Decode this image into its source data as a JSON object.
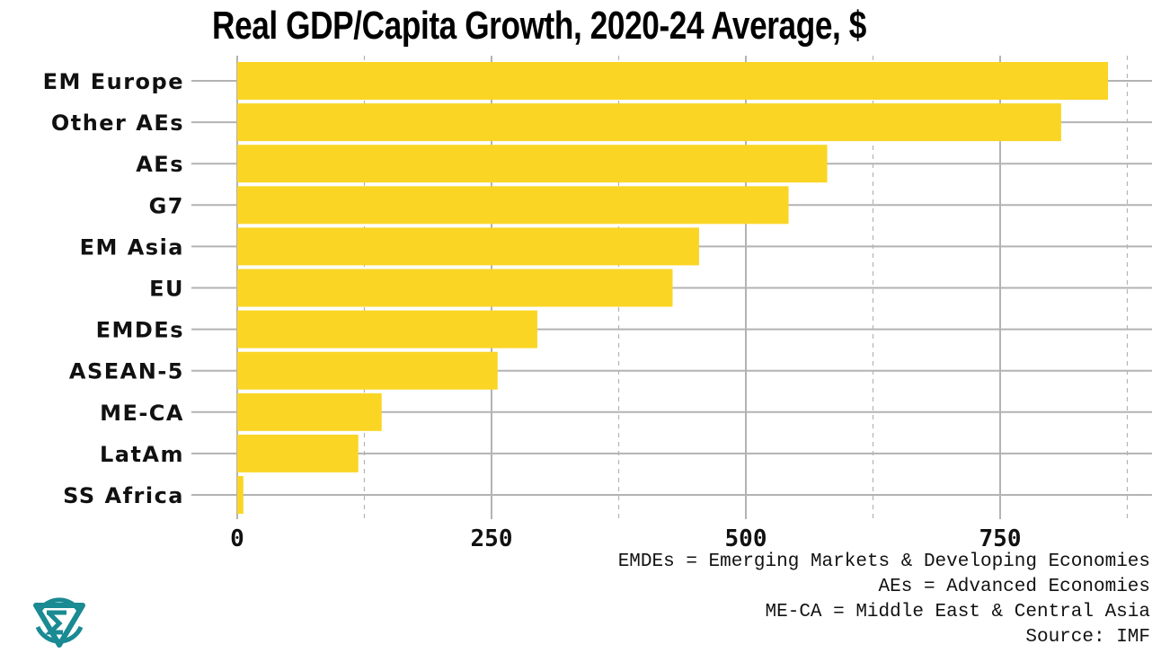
{
  "chart_data": {
    "type": "bar",
    "orientation": "horizontal",
    "title": "Real GDP/Capita Growth, 2020-24 Average, $",
    "categories": [
      "EM Europe",
      "Other AEs",
      "AEs",
      "G7",
      "EM Asia",
      "EU",
      "EMDEs",
      "ASEAN-5",
      "ME-CA",
      "LatAm",
      "SS Africa"
    ],
    "values": [
      856,
      810,
      580,
      542,
      454,
      428,
      295,
      256,
      142,
      119,
      6
    ],
    "xlabel": "",
    "ylabel": "",
    "xlim": [
      0,
      900
    ],
    "xticks": [
      0,
      250,
      500,
      750
    ],
    "xtick_labels": [
      "0",
      "250",
      "500",
      "750"
    ],
    "grid": true,
    "bar_color": "#FAD524",
    "grid_color": "#B3B3B3"
  },
  "notes": [
    "EMDEs = Emerging Markets & Developing Economies",
    "AEs = Advanced Economies",
    "ME-CA = Middle East & Central Asia",
    "Source: IMF"
  ],
  "logo": {
    "color": "#1A8A93"
  }
}
